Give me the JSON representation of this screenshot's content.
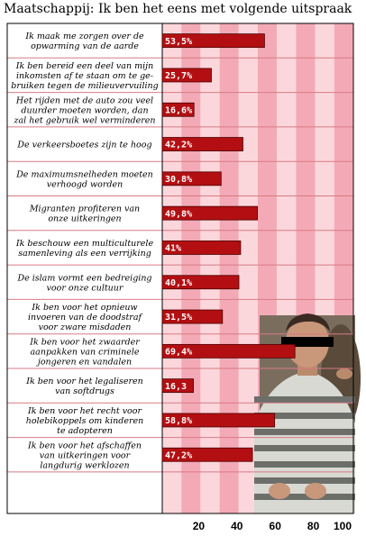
{
  "title": "Maatschappij: Ik ben het eens met volgende uitspraak",
  "colors": {
    "bar": "#b30f12",
    "bar_edge": "#4a0000",
    "column_light": "#fbd7dc",
    "column_dark": "#f3aab6",
    "separator": "#d77a85"
  },
  "chart_data": {
    "type": "bar",
    "orientation": "horizontal",
    "categories": [
      [
        "Ik maak me zorgen over de",
        "opwarming van de aarde"
      ],
      [
        "Ik ben bereid een deel van mijn",
        "inkomsten af te staan om te ge-",
        "bruiken tegen de milieuvervuiling"
      ],
      [
        "Het rijden met de auto zou veel",
        "duurder moeten worden, dan",
        "zal het gebruik wel verminderen"
      ],
      [
        "De verkeersboetes zijn te hoog"
      ],
      [
        "De maximumsnelheden moeten",
        "verhoogd worden"
      ],
      [
        "Migranten profiteren van",
        "onze uitkeringen"
      ],
      [
        "Ik beschouw een multiculturele",
        "samenleving als een verrijking"
      ],
      [
        "De islam vormt een bedreiging",
        "voor onze cultuur"
      ],
      [
        "Ik ben voor het opnieuw",
        "invoeren van de doodstraf",
        "voor zware misdaden"
      ],
      [
        "Ik ben voor het zwaarder",
        "aanpakken van criminele",
        "jongeren en vandalen"
      ],
      [
        "Ik ben voor het legaliseren",
        "van softdrugs"
      ],
      [
        "Ik ben voor het recht voor",
        "holebikoppels om kinderen",
        "te adopteren"
      ],
      [
        "Ik ben voor het afschaffen",
        "van uitkeringen voor",
        "langdurig werklozen"
      ]
    ],
    "values": [
      53.5,
      25.7,
      16.6,
      42.2,
      30.8,
      49.8,
      41,
      40.1,
      31.5,
      69.4,
      16.3,
      58.8,
      47.2
    ],
    "value_labels": [
      "53,5%",
      "25,7%",
      "16,6%",
      "42,2%",
      "30,8%",
      "49,8%",
      "41%",
      "40,1%",
      "31,5%",
      "69,4%",
      "16,3",
      "58,8%",
      "47,2%"
    ],
    "xlim": [
      0,
      100
    ],
    "xticks": [
      20,
      40,
      60,
      80,
      100
    ],
    "grid": true,
    "legend": "none"
  }
}
